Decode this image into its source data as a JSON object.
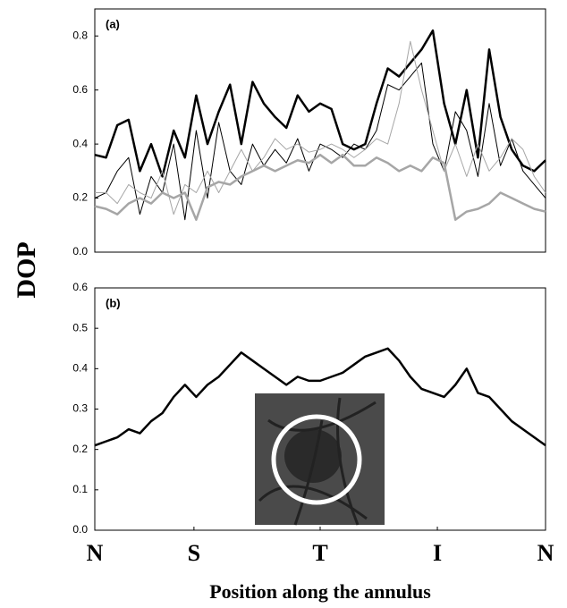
{
  "chart_data": [
    {
      "type": "line",
      "label": "(a)",
      "ylabel": "DOP",
      "x": [
        0,
        0.025,
        0.05,
        0.075,
        0.1,
        0.125,
        0.15,
        0.175,
        0.2,
        0.225,
        0.25,
        0.275,
        0.3,
        0.325,
        0.35,
        0.375,
        0.4,
        0.425,
        0.45,
        0.475,
        0.5,
        0.525,
        0.55,
        0.575,
        0.6,
        0.625,
        0.65,
        0.675,
        0.7,
        0.725,
        0.75,
        0.775,
        0.8,
        0.825,
        0.85,
        0.875,
        0.9,
        0.925,
        0.95,
        0.975,
        1
      ],
      "xlim": [
        0,
        1
      ],
      "ylim": [
        0,
        0.9
      ],
      "yticks": [
        {
          "value": 0,
          "label": "0.0"
        },
        0.2,
        0.4,
        0.6,
        0.8
      ],
      "series": [
        {
          "color": "#000000",
          "width": 2.5,
          "values": [
            0.36,
            0.35,
            0.47,
            0.49,
            0.3,
            0.4,
            0.28,
            0.45,
            0.35,
            0.58,
            0.4,
            0.52,
            0.62,
            0.4,
            0.63,
            0.55,
            0.5,
            0.46,
            0.58,
            0.52,
            0.55,
            0.53,
            0.4,
            0.38,
            0.4,
            0.55,
            0.68,
            0.65,
            0.7,
            0.75,
            0.82,
            0.55,
            0.4,
            0.6,
            0.35,
            0.75,
            0.5,
            0.38,
            0.32,
            0.3,
            0.34
          ]
        },
        {
          "color": "#000000",
          "width": 1,
          "values": [
            0.2,
            0.22,
            0.3,
            0.35,
            0.14,
            0.28,
            0.22,
            0.4,
            0.12,
            0.45,
            0.2,
            0.48,
            0.3,
            0.25,
            0.4,
            0.32,
            0.38,
            0.33,
            0.42,
            0.3,
            0.4,
            0.38,
            0.35,
            0.4,
            0.38,
            0.45,
            0.62,
            0.6,
            0.65,
            0.7,
            0.4,
            0.3,
            0.52,
            0.45,
            0.28,
            0.55,
            0.32,
            0.42,
            0.3,
            0.25,
            0.2
          ]
        },
        {
          "color": "#a6a6a6",
          "width": 1,
          "values": [
            0.22,
            0.22,
            0.18,
            0.25,
            0.22,
            0.2,
            0.3,
            0.14,
            0.25,
            0.22,
            0.3,
            0.22,
            0.3,
            0.38,
            0.3,
            0.35,
            0.42,
            0.38,
            0.4,
            0.37,
            0.38,
            0.4,
            0.38,
            0.35,
            0.38,
            0.42,
            0.4,
            0.55,
            0.78,
            0.6,
            0.45,
            0.3,
            0.4,
            0.28,
            0.4,
            0.3,
            0.35,
            0.42,
            0.38,
            0.28,
            0.22
          ]
        },
        {
          "color": "#a6a6a6",
          "width": 2.5,
          "values": [
            0.17,
            0.16,
            0.14,
            0.18,
            0.2,
            0.18,
            0.22,
            0.2,
            0.22,
            0.12,
            0.24,
            0.26,
            0.25,
            0.28,
            0.3,
            0.32,
            0.3,
            0.32,
            0.34,
            0.33,
            0.36,
            0.33,
            0.36,
            0.32,
            0.32,
            0.35,
            0.33,
            0.3,
            0.32,
            0.3,
            0.35,
            0.33,
            0.12,
            0.15,
            0.16,
            0.18,
            0.22,
            0.2,
            0.18,
            0.16,
            0.15
          ]
        }
      ]
    },
    {
      "type": "line",
      "label": "(b)",
      "xlabel": "Position along the annulus",
      "x": [
        0,
        0.025,
        0.05,
        0.075,
        0.1,
        0.125,
        0.15,
        0.175,
        0.2,
        0.225,
        0.25,
        0.275,
        0.3,
        0.325,
        0.35,
        0.375,
        0.4,
        0.425,
        0.45,
        0.475,
        0.5,
        0.525,
        0.55,
        0.575,
        0.6,
        0.625,
        0.65,
        0.675,
        0.7,
        0.725,
        0.75,
        0.775,
        0.8,
        0.825,
        0.85,
        0.875,
        0.9,
        0.925,
        0.95,
        0.975,
        1
      ],
      "xlim": [
        0,
        1
      ],
      "ylim": [
        0,
        0.6
      ],
      "xticks": [
        {
          "value": 0,
          "label": "N"
        },
        {
          "value": 0.22,
          "label": "S"
        },
        {
          "value": 0.5,
          "label": "T"
        },
        {
          "value": 0.76,
          "label": "I"
        },
        {
          "value": 1,
          "label": "N"
        }
      ],
      "yticks": [
        {
          "value": 0,
          "label": "0.0"
        },
        0.1,
        0.2,
        0.3,
        0.4,
        0.5,
        0.6
      ],
      "series": [
        {
          "color": "#000000",
          "width": 2.5,
          "values": [
            0.21,
            0.22,
            0.23,
            0.25,
            0.24,
            0.27,
            0.29,
            0.33,
            0.36,
            0.33,
            0.36,
            0.38,
            0.41,
            0.44,
            0.42,
            0.4,
            0.38,
            0.36,
            0.38,
            0.37,
            0.37,
            0.38,
            0.39,
            0.41,
            0.43,
            0.44,
            0.45,
            0.42,
            0.38,
            0.35,
            0.34,
            0.33,
            0.36,
            0.4,
            0.34,
            0.33,
            0.3,
            0.27,
            0.25,
            0.23,
            0.21
          ]
        }
      ]
    }
  ]
}
